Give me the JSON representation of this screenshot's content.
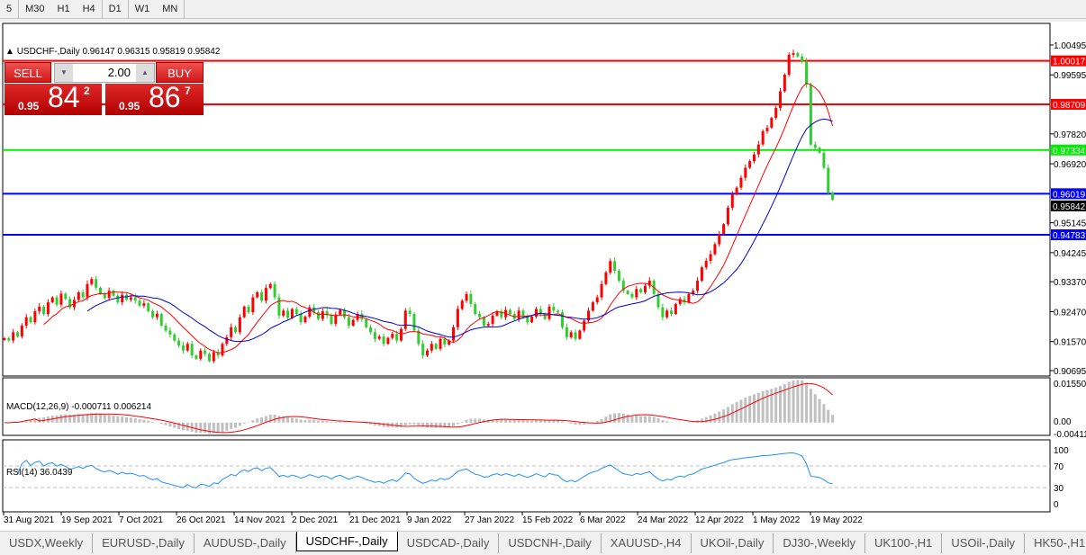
{
  "toolbar": {
    "timeframes": [
      "5",
      "M30",
      "H1",
      "H4",
      "D1",
      "W1",
      "MN"
    ],
    "active": "D1"
  },
  "chart_header": {
    "symbol": "USDCHF-,Daily",
    "open": "0.96147",
    "high": "0.96315",
    "low": "0.95819",
    "close": "0.95842"
  },
  "trade_panel": {
    "sell_label": "SELL",
    "buy_label": "BUY",
    "lot": "2.00",
    "sell_prefix": "0.95",
    "sell_big": "84",
    "sell_sup": "2",
    "buy_prefix": "0.95",
    "buy_big": "86",
    "buy_sup": "7"
  },
  "indicators": {
    "macd_label": "MACD(12,26,9) -0.000711 0.006214",
    "rsi_label": "RSI(14) 36.0439"
  },
  "chart_data": {
    "type": "candlestick",
    "symbol": "USDCHF",
    "timeframe": "Daily",
    "ylim": [
      0.90695,
      1.00495
    ],
    "y_ticks": [
      "1.00495",
      "0.99595",
      "0.97820",
      "0.96920",
      "0.95145",
      "0.94245",
      "0.93370",
      "0.92470",
      "0.91570",
      "0.90695"
    ],
    "x_ticks": [
      "31 Aug 2021",
      "19 Sep 2021",
      "7 Oct 2021",
      "26 Oct 2021",
      "14 Nov 2021",
      "2 Dec 2021",
      "21 Dec 2021",
      "9 Jan 2022",
      "27 Jan 2022",
      "15 Feb 2022",
      "6 Mar 2022",
      "24 Mar 2022",
      "12 Apr 2022",
      "1 May 2022",
      "19 May 2022"
    ],
    "closes": [
      0.9167,
      0.916,
      0.9185,
      0.9172,
      0.9205,
      0.923,
      0.9215,
      0.9248,
      0.9262,
      0.924,
      0.9275,
      0.929,
      0.9268,
      0.9301,
      0.9285,
      0.926,
      0.9282,
      0.9305,
      0.929,
      0.933,
      0.9345,
      0.9319,
      0.93,
      0.9288,
      0.931,
      0.9295,
      0.9275,
      0.9298,
      0.9283,
      0.929,
      0.928,
      0.9265,
      0.9272,
      0.9248,
      0.923,
      0.924,
      0.9205,
      0.919,
      0.9178,
      0.916,
      0.9145,
      0.913,
      0.915,
      0.9115,
      0.9105,
      0.913,
      0.912,
      0.9098,
      0.9125,
      0.9115,
      0.915,
      0.917,
      0.92,
      0.9185,
      0.923,
      0.9262,
      0.9245,
      0.929,
      0.9305,
      0.928,
      0.9318,
      0.933,
      0.929,
      0.9235,
      0.925,
      0.9228,
      0.9255,
      0.924,
      0.9215,
      0.9232,
      0.926,
      0.9245,
      0.9225,
      0.9248,
      0.9236,
      0.921,
      0.9238,
      0.9252,
      0.923,
      0.9205,
      0.9222,
      0.924,
      0.9224,
      0.92,
      0.9185,
      0.9165,
      0.9172,
      0.915,
      0.9168,
      0.918,
      0.916,
      0.9195,
      0.925,
      0.924,
      0.919,
      0.915,
      0.9115,
      0.913,
      0.915,
      0.9135,
      0.9165,
      0.9148,
      0.916,
      0.92,
      0.9255,
      0.928,
      0.93,
      0.927,
      0.924,
      0.923,
      0.9205,
      0.921,
      0.9235,
      0.9248,
      0.923,
      0.9252,
      0.924,
      0.9225,
      0.925,
      0.923,
      0.9215,
      0.9232,
      0.9255,
      0.924,
      0.9225,
      0.9262,
      0.925,
      0.9245,
      0.92,
      0.917,
      0.9185,
      0.9165,
      0.919,
      0.922,
      0.925,
      0.9275,
      0.929,
      0.933,
      0.9365,
      0.9399,
      0.937,
      0.934,
      0.931,
      0.93,
      0.929,
      0.9315,
      0.9305,
      0.9325,
      0.934,
      0.93,
      0.926,
      0.923,
      0.925,
      0.924,
      0.927,
      0.9285,
      0.9275,
      0.93,
      0.931,
      0.934,
      0.938,
      0.94,
      0.942,
      0.945,
      0.948,
      0.951,
      0.956,
      0.96,
      0.962,
      0.965,
      0.968,
      0.97,
      0.972,
      0.975,
      0.979,
      0.98,
      0.983,
      0.986,
      0.991,
      0.996,
      1.002,
      1.0025,
      1.0015,
      1.0,
      0.993,
      0.975,
      0.974,
      0.9725,
      0.968,
      0.9605,
      0.9584
    ],
    "moving_averages": [
      {
        "color": "#ff0000"
      },
      {
        "color": "#0000cd"
      }
    ],
    "horizontal_levels": [
      {
        "price": "1.00017",
        "color": "#ff0000"
      },
      {
        "price": "0.98709",
        "color": "#ff0000"
      },
      {
        "price": "0.97334",
        "color": "#00ee00"
      },
      {
        "price": "0.96019",
        "color": "#0000ff"
      },
      {
        "price": "0.94783",
        "color": "#0000ff"
      }
    ],
    "current_price": "0.95842",
    "bull_color": "#ff0000",
    "bear_color": "#32cd32",
    "macd": {
      "params": [
        12,
        26,
        9
      ],
      "max_label": "0.015504",
      "zero_label": "0.00",
      "min_label": "-0.004118",
      "ylim": [
        -0.004118,
        0.015504
      ]
    },
    "rsi": {
      "period": 14,
      "levels": [
        "100",
        "70",
        "30",
        "0"
      ],
      "ylim": [
        0,
        100
      ]
    }
  },
  "tabs": [
    "USDX,Weekly",
    "EURUSD-,Daily",
    "AUDUSD-,Daily",
    "USDCHF-,Daily",
    "USDCAD-,Daily",
    "USDCNH-,Daily",
    "XAUUSD-,H4",
    "UKOil-,Daily",
    "DJ30-,Weekly",
    "UK100-,H1",
    "USOil-,Daily",
    "HK50-,H1"
  ],
  "active_tab": "USDCHF-,Daily"
}
